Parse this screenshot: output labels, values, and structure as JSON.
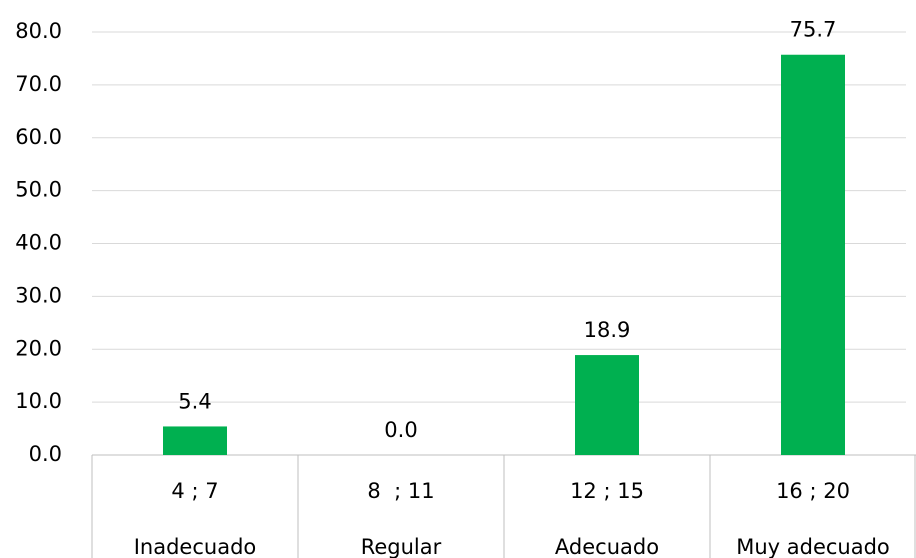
{
  "chart_data": {
    "type": "bar",
    "categories": [
      "Inadecuado",
      "Regular",
      "Adecuado",
      "Muy adecuado"
    ],
    "category_ranges": [
      "4 ; 7",
      "8  ; 11",
      "12 ; 15",
      "16 ; 20"
    ],
    "values": [
      5.4,
      0,
      18.9,
      75.7
    ],
    "value_labels": [
      "5.4",
      "0.0",
      "18.9",
      "75.7"
    ],
    "color": "#00b050",
    "ylim": [
      0,
      80
    ],
    "yticks": [
      {
        "value": 0,
        "label": "0.0"
      },
      {
        "value": 10,
        "label": "10.0"
      },
      {
        "value": 20,
        "label": "20.0"
      },
      {
        "value": 30,
        "label": "30.0"
      },
      {
        "value": 40,
        "label": "40.0"
      },
      {
        "value": 50,
        "label": "50.0"
      },
      {
        "value": 60,
        "label": "60.0"
      },
      {
        "value": 70,
        "label": "70.0"
      },
      {
        "value": 80,
        "label": "80.0"
      }
    ],
    "grid": true
  }
}
